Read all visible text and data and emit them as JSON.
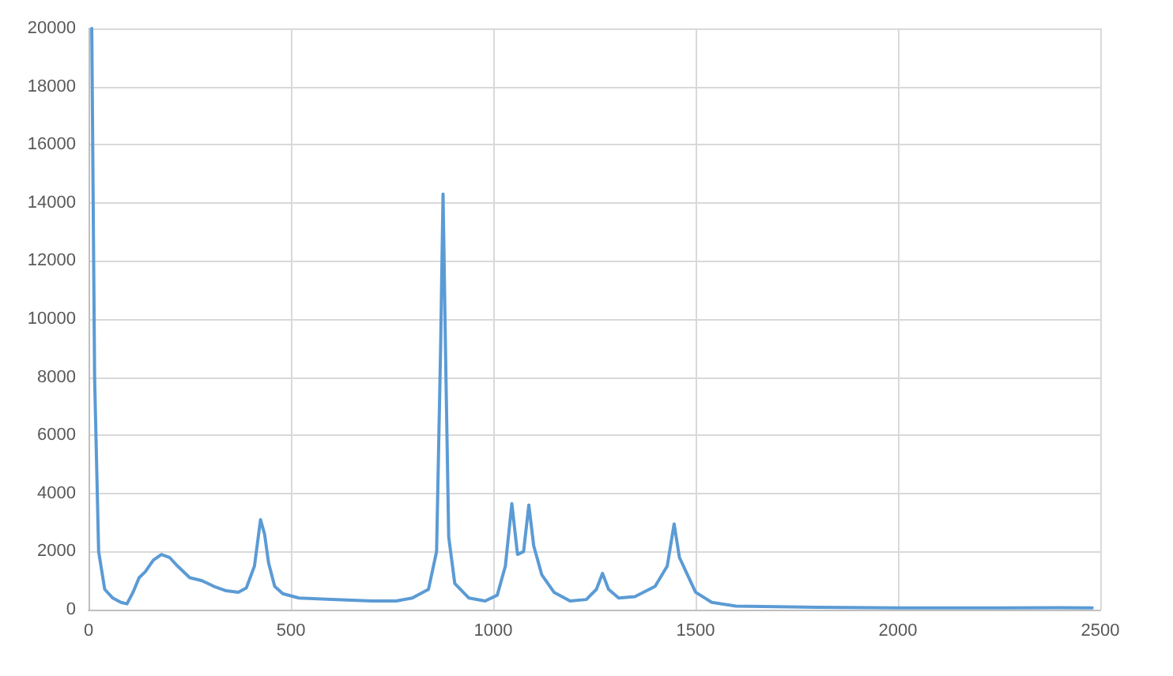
{
  "chart_data": {
    "type": "line",
    "x": [
      8,
      15,
      25,
      40,
      60,
      80,
      95,
      110,
      125,
      140,
      160,
      180,
      200,
      220,
      250,
      280,
      310,
      340,
      370,
      390,
      410,
      425,
      435,
      445,
      460,
      480,
      520,
      600,
      700,
      760,
      800,
      840,
      860,
      870,
      876,
      882,
      890,
      905,
      940,
      980,
      1010,
      1030,
      1046,
      1060,
      1075,
      1088,
      1100,
      1120,
      1150,
      1190,
      1230,
      1255,
      1270,
      1285,
      1310,
      1350,
      1400,
      1430,
      1447,
      1460,
      1480,
      1500,
      1540,
      1600,
      1800,
      2000,
      2200,
      2400,
      2480
    ],
    "series": [
      {
        "color": "#5b9bd5",
        "values": [
          20000,
          8000,
          2000,
          700,
          400,
          250,
          200,
          600,
          1100,
          1300,
          1700,
          1900,
          1800,
          1500,
          1100,
          1000,
          800,
          650,
          600,
          750,
          1500,
          3100,
          2600,
          1600,
          800,
          550,
          400,
          350,
          300,
          300,
          400,
          700,
          2000,
          9000,
          14300,
          9000,
          2500,
          900,
          400,
          300,
          500,
          1500,
          3650,
          1900,
          2000,
          3600,
          2200,
          1200,
          600,
          300,
          350,
          700,
          1250,
          700,
          400,
          450,
          800,
          1500,
          2950,
          1800,
          1200,
          600,
          250,
          120,
          80,
          60,
          60,
          70,
          60
        ]
      }
    ],
    "xlim": [
      0,
      2500
    ],
    "xticks": [
      0,
      500,
      1000,
      1500,
      2000,
      2500
    ],
    "ylim": [
      0,
      20000
    ],
    "yticks": [
      0,
      2000,
      4000,
      6000,
      8000,
      10000,
      12000,
      14000,
      16000,
      18000,
      20000
    ],
    "grid": true,
    "marker": "none",
    "line_style": "solid"
  }
}
